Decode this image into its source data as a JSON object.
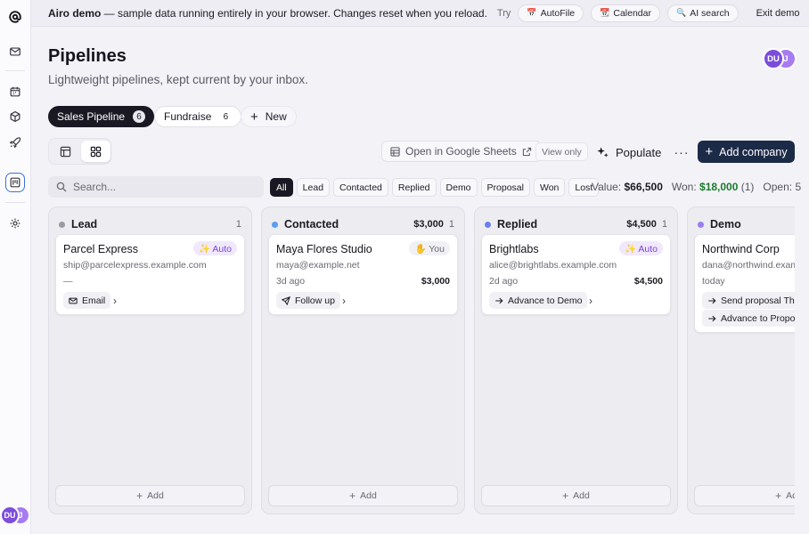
{
  "banner": {
    "title": "Airo demo",
    "message": " — sample data running entirely in your browser. Changes reset when you reload.",
    "try_label": "Try",
    "chips": [
      {
        "icon": "📅",
        "label": "AutoFile"
      },
      {
        "icon": "📆",
        "label": "Calendar"
      },
      {
        "icon": "🔍",
        "label": "AI search"
      }
    ],
    "exit_label": "Exit demo",
    "close_glyph": "✕"
  },
  "user": {
    "initials_primary": "DU",
    "initials_secondary": "J"
  },
  "page": {
    "title": "Pipelines",
    "subtitle": "Lightweight pipelines, kept current by your inbox."
  },
  "pipelines": [
    {
      "label": "Sales Pipeline",
      "count": "6"
    },
    {
      "label": "Fundraise",
      "count": "6"
    }
  ],
  "new_label": "New",
  "toolbar": {
    "sheets_label": "Open in Google Sheets",
    "view_only_label": "View only",
    "populate_label": "Populate",
    "more_glyph": "···",
    "add_company_label": "Add company"
  },
  "search": {
    "placeholder": "Search..."
  },
  "filters": [
    "All",
    "Lead",
    "Contacted",
    "Replied",
    "Demo",
    "Proposal",
    "Won",
    "Lost"
  ],
  "stats": {
    "value_label": "Value:",
    "value": "$66,500",
    "won_label": "Won:",
    "won_value": "$18,000",
    "won_count": "(1)",
    "open_label": "Open: 5"
  },
  "colors": {
    "lead": "#9b9aa3",
    "contacted": "#5b9cf0",
    "replied": "#6b7ff0",
    "demo": "#9c7cf0",
    "accent": "#1b2a47"
  },
  "columns": [
    {
      "name": "Lead",
      "total": "",
      "count": "1",
      "add_label": "Add",
      "card": {
        "name": "Parcel Express",
        "tag": "✨ Auto",
        "email": "ship@parcelexpress.example.com",
        "meta": "—",
        "amount": "",
        "action": "Email",
        "action_icon": "mail-icon"
      }
    },
    {
      "name": "Contacted",
      "total": "$3,000",
      "count": "1",
      "add_label": "Add",
      "card": {
        "name": "Maya Flores Studio",
        "tag": "✋ You",
        "email": "maya@example.net",
        "meta": "3d ago",
        "amount": "$3,000",
        "action": "Follow up",
        "action_icon": "send-icon"
      }
    },
    {
      "name": "Replied",
      "total": "$4,500",
      "count": "1",
      "add_label": "Add",
      "card": {
        "name": "Brightlabs",
        "tag": "✨ Auto",
        "email": "alice@brightlabs.example.com",
        "meta": "2d ago",
        "amount": "$4,500",
        "action": "Advance to Demo",
        "action_icon": "arrow-right-icon"
      }
    },
    {
      "name": "Demo",
      "total": "",
      "count": "",
      "add_label": "Add",
      "card": {
        "name": "Northwind Corp",
        "tag": "",
        "email": "dana@northwind.example.com",
        "meta": "today",
        "amount": "",
        "action": "Send proposal Thursday",
        "action_icon": "arrow-right-icon",
        "action2": "Advance to Proposal"
      }
    }
  ]
}
